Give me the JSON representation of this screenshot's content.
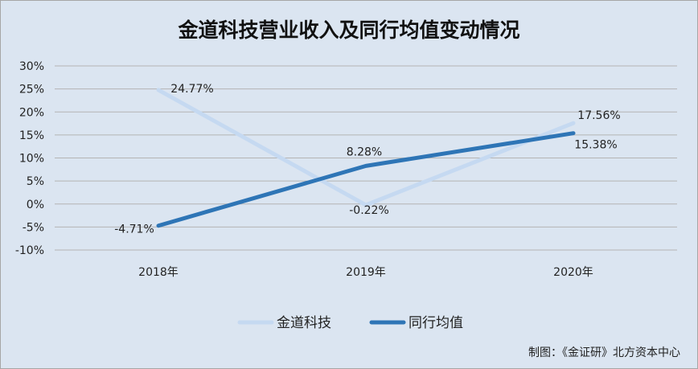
{
  "chart_data": {
    "type": "line",
    "title": "金道科技营业收入及同行均值变动情况",
    "categories": [
      "2018年",
      "2019年",
      "2020年"
    ],
    "series": [
      {
        "name": "金道科技",
        "values": [
          24.77,
          -0.22,
          17.56
        ],
        "labels": [
          "24.77%",
          "-0.22%",
          "17.56%"
        ],
        "color": "#c5d9f1"
      },
      {
        "name": "同行均值",
        "values": [
          -4.71,
          8.28,
          15.38
        ],
        "labels": [
          "-4.71%",
          "8.28%",
          "15.38%"
        ],
        "color": "#2e75b6"
      }
    ],
    "ylim": [
      -10,
      30
    ],
    "yticks": [
      -10,
      -5,
      0,
      5,
      10,
      15,
      20,
      25,
      30
    ],
    "ytick_labels": [
      "-10%",
      "-5%",
      "0%",
      "5%",
      "10%",
      "15%",
      "20%",
      "25%",
      "30%"
    ],
    "xlabel": "",
    "ylabel": "",
    "grid": true,
    "legend": "bottom"
  },
  "credit": "制图：《金证研》北方资本中心"
}
